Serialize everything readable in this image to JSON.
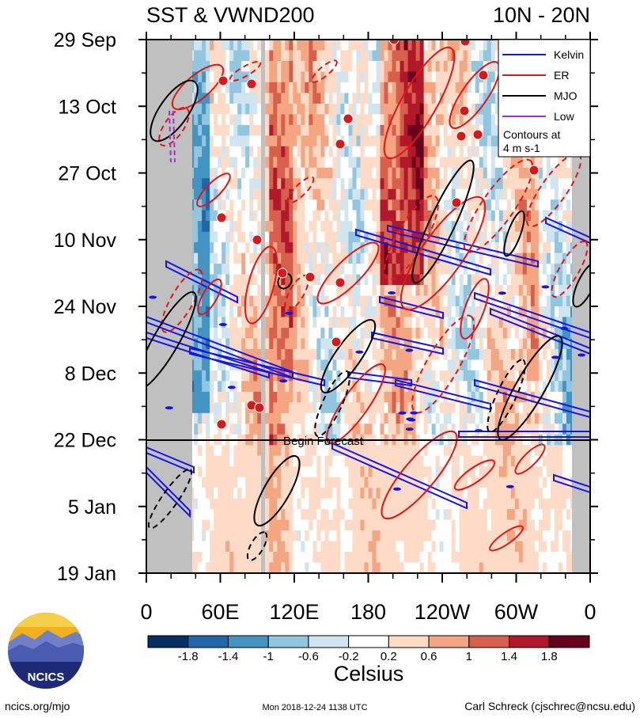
{
  "chart_data": {
    "type": "heatmap",
    "title_left": "SST & VWND200",
    "title_right": "10N - 20N",
    "y_ticks": [
      "29 Sep",
      "13 Oct",
      "27 Oct",
      "10 Nov",
      "24 Nov",
      "8 Dec",
      "22 Dec",
      "5 Jan",
      "19 Jan"
    ],
    "x_ticks": [
      "0",
      "60E",
      "120E",
      "180",
      "120W",
      "60W",
      "0"
    ],
    "forecast_label": "Begin Forecast",
    "legend": {
      "entries": [
        {
          "name": "Kelvin",
          "color": "#1515e6"
        },
        {
          "name": "ER",
          "color": "#e61414"
        },
        {
          "name": "MJO",
          "color": "#000000"
        },
        {
          "name": "Low",
          "color": "#9933cc"
        }
      ],
      "note_line1": "Contours at",
      "note_line2": "4 m s-1",
      "placement": "top-right"
    },
    "colorbar": {
      "label": "Celsius",
      "tick_labels": [
        "-1.8",
        "-1.4",
        "-1",
        "-0.6",
        "-0.2",
        "0.2",
        "0.6",
        "1",
        "1.4",
        "1.8"
      ],
      "colors": [
        "#053061",
        "#2166ac",
        "#4393c3",
        "#92c5de",
        "#d1e5f0",
        "#ffffff",
        "#fddbc7",
        "#f4a582",
        "#d6604d",
        "#b2182b",
        "#67001f"
      ]
    },
    "land_color": "#c0c0c0"
  },
  "footer": {
    "logo_text": "NCICS",
    "url": "ncics.org/mjo",
    "timestamp": "Mon 2018-12-24 1138 UTC",
    "author": "Carl Schreck (cjschrec@ncsu.edu)"
  }
}
